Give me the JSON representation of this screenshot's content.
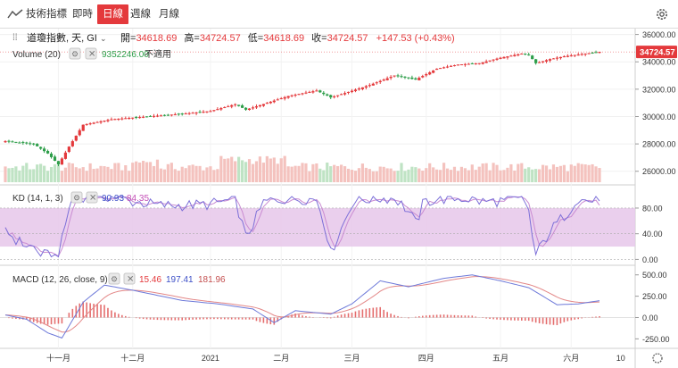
{
  "toolbar": {
    "indicator_label": "技術指標",
    "intervals": [
      "即時",
      "日線",
      "週線",
      "月線"
    ],
    "active_interval": "日線"
  },
  "legend": {
    "symbol": "道瓊指數, 天, GI",
    "open_label": "開=",
    "open": "34618.69",
    "high_label": "高=",
    "high": "34724.57",
    "low_label": "低=",
    "low": "34618.69",
    "close_label": "收=",
    "close": "34724.57",
    "change": "+147.53 (+0.43%)"
  },
  "volume_legend": {
    "label": "Volume (20)",
    "value": "9352246.00",
    "note": "不適用"
  },
  "kd_legend": {
    "label": "KD (14, 1, 3)",
    "k": "90.93",
    "d": "84.35"
  },
  "macd_legend": {
    "label": "MACD (12, 26, close, 9)",
    "hist": "15.46",
    "macd": "197.41",
    "signal": "181.96"
  },
  "colors": {
    "up": "#e4393c",
    "down": "#2e9e4a",
    "volume_up": "#f4c2be",
    "volume_down": "#bfe3c4",
    "k_line": "#7c6fd8",
    "d_line": "#c98bd2",
    "kd_band": "#e6c7ea",
    "macd_line": "#6d79d9",
    "signal_line": "#e38787",
    "hist_up": "#e46e6e",
    "hist_down": "#e46e6e",
    "toolbar_active": "#e4393c"
  },
  "chart_data": [
    {
      "type": "candlestick",
      "title": "道瓊指數",
      "y_ticks": [
        26000,
        28000,
        30000,
        32000,
        34000,
        36000
      ],
      "ylim": [
        25200,
        36300
      ],
      "last_price_tag": "34724.57",
      "x_tick_labels": [
        "十一月",
        "十二月",
        "2021",
        "二月",
        "三月",
        "四月",
        "五月",
        "六月",
        "10"
      ],
      "close_anchors": [
        {
          "day": 0,
          "close": 28200
        },
        {
          "day": 8,
          "close": 28000
        },
        {
          "day": 12,
          "close": 27300
        },
        {
          "day": 15,
          "close": 26500
        },
        {
          "day": 18,
          "close": 27800
        },
        {
          "day": 22,
          "close": 29400
        },
        {
          "day": 30,
          "close": 29800
        },
        {
          "day": 40,
          "close": 30000
        },
        {
          "day": 50,
          "close": 30200
        },
        {
          "day": 58,
          "close": 30400
        },
        {
          "day": 65,
          "close": 30900
        },
        {
          "day": 68,
          "close": 30500
        },
        {
          "day": 74,
          "close": 31000
        },
        {
          "day": 80,
          "close": 31500
        },
        {
          "day": 88,
          "close": 31900
        },
        {
          "day": 92,
          "close": 31400
        },
        {
          "day": 97,
          "close": 31800
        },
        {
          "day": 103,
          "close": 32300
        },
        {
          "day": 110,
          "close": 33000
        },
        {
          "day": 116,
          "close": 32700
        },
        {
          "day": 122,
          "close": 33500
        },
        {
          "day": 128,
          "close": 33800
        },
        {
          "day": 134,
          "close": 33900
        },
        {
          "day": 140,
          "close": 34300
        },
        {
          "day": 146,
          "close": 34600
        },
        {
          "day": 148,
          "close": 34500
        },
        {
          "day": 150,
          "close": 33900
        },
        {
          "day": 154,
          "close": 34200
        },
        {
          "day": 158,
          "close": 34400
        },
        {
          "day": 164,
          "close": 34600
        },
        {
          "day": 168,
          "close": 34724.57
        }
      ]
    },
    {
      "type": "bar",
      "title": "Volume (20)",
      "last_value": 9352246.0
    },
    {
      "type": "line",
      "title": "KD (14, 1, 3)",
      "y_ticks": [
        0,
        40,
        80
      ],
      "ylim": [
        -5,
        105
      ],
      "band": [
        20,
        80
      ],
      "series": [
        {
          "name": "K",
          "last": 90.93
        },
        {
          "name": "D",
          "last": 84.35
        }
      ]
    },
    {
      "type": "line",
      "title": "MACD (12, 26, close, 9)",
      "y_ticks": [
        -250,
        0,
        250,
        500
      ],
      "ylim": [
        -330,
        560
      ],
      "series": [
        {
          "name": "MACD",
          "last": 197.41
        },
        {
          "name": "Signal",
          "last": 181.96
        },
        {
          "name": "Histogram",
          "last": 15.46
        }
      ],
      "anchors": [
        {
          "day": 0,
          "macd": 30
        },
        {
          "day": 6,
          "macd": -20
        },
        {
          "day": 12,
          "macd": -180
        },
        {
          "day": 16,
          "macd": -240
        },
        {
          "day": 22,
          "macd": 180
        },
        {
          "day": 28,
          "macd": 380
        },
        {
          "day": 36,
          "macd": 320
        },
        {
          "day": 50,
          "macd": 200
        },
        {
          "day": 60,
          "macd": 160
        },
        {
          "day": 70,
          "macd": 100
        },
        {
          "day": 76,
          "macd": -60
        },
        {
          "day": 82,
          "macd": 80
        },
        {
          "day": 92,
          "macd": 40
        },
        {
          "day": 98,
          "macd": 160
        },
        {
          "day": 106,
          "macd": 430
        },
        {
          "day": 114,
          "macd": 360
        },
        {
          "day": 124,
          "macd": 460
        },
        {
          "day": 132,
          "macd": 500
        },
        {
          "day": 140,
          "macd": 430
        },
        {
          "day": 148,
          "macd": 350
        },
        {
          "day": 156,
          "macd": 150
        },
        {
          "day": 162,
          "macd": 160
        },
        {
          "day": 168,
          "macd": 197.41
        }
      ]
    }
  ]
}
